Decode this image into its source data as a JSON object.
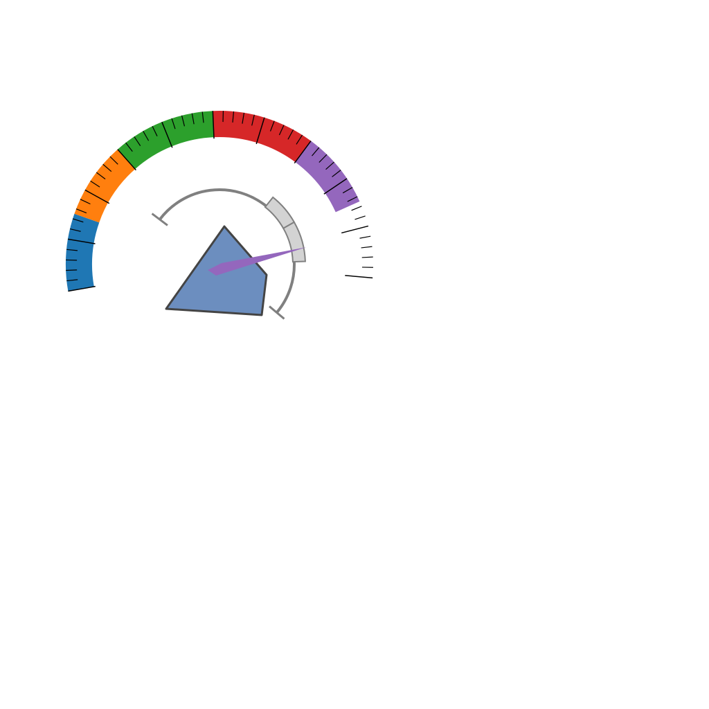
{
  "chart_data": {
    "type": "gauge",
    "scale": {
      "min": 0,
      "max": 100,
      "major_step": 10,
      "minor_step": 2
    },
    "bands": [
      {
        "from": 0,
        "to": 15,
        "color": "#1f77b4"
      },
      {
        "from": 15,
        "to": 30,
        "color": "#ff7f0e"
      },
      {
        "from": 30,
        "to": 50,
        "color": "#2ca02c"
      },
      {
        "from": 50,
        "to": 70,
        "color": "#d62728"
      },
      {
        "from": 70,
        "to": 85,
        "color": "#9467bd"
      }
    ],
    "inner_arc": {
      "range": [
        0,
        100
      ],
      "highlight_bands": [
        {
          "from": 50,
          "to": 62,
          "color": "#d3d3d3"
        },
        {
          "from": 62,
          "to": 77,
          "color": "#d3d3d3"
        }
      ],
      "color": "#808080"
    },
    "needle": {
      "value": 72,
      "color": "#9467bd"
    },
    "polygon": {
      "fill": "#6c8ebf",
      "stroke": "#444444"
    },
    "grid": false,
    "legend": "none"
  }
}
